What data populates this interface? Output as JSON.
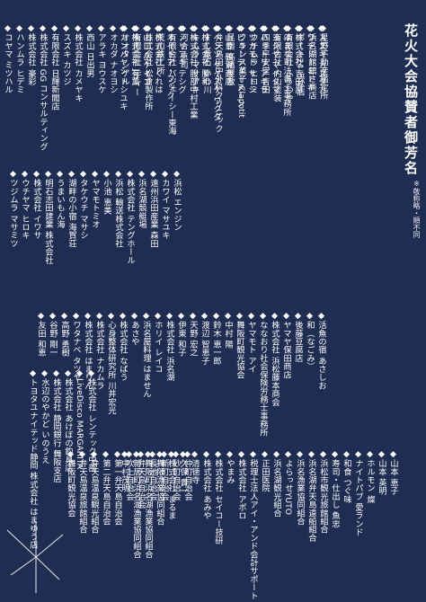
{
  "title": "花火大会協賛者御芳名",
  "note": "※敬称略・順不同",
  "bullet": "◆",
  "blocks": [
    {
      "name": "top-right",
      "entries": [
        "スズキ カズタカ",
        "ワデドーミトキ",
        "株式会社 吉田屋",
        "はまな司法書士事務所",
        "ヨシヤ マイタマ",
        "ハットリ アキラ",
        "ツカモト サトシ",
        "ビューティーヌーン",
        "山豊 鶴賀商店",
        "ベンツ ケイスケ ワクダ",
        "株式会社 勝和",
        "株式会社 服部中村工業",
        "ノリアキ テシグ",
        "オイトア・フック",
        "株式会社 くれは",
        "山口 岳ケイゴ",
        "株式会社 有薫",
        "カンバヤシ トシユキ"
      ]
    },
    {
      "name": "top-middle",
      "entries": [
        "星野不動産鑑定所",
        "浜名湖館舘さ商店",
        "ポート24 浜松店",
        "有限会社 ふうわや",
        "有限会社 内山塗装",
        "四季平安堂 吉田",
        "ウチムラ ヒロミ",
        "フランス菓子 Clapotit",
        "民宿 髙橋屋敷",
        "弁天島田中外科クリニック",
        "すし竜石 いわ川",
        "キムラ マサアキ",
        "河合 恵司",
        "有限会社 バジェーシー東海",
        "荒川鉄工所",
        "株式会社 松倉製作所",
        "有限会社 Jディー",
        "オオタ シゲル",
        "オカダ ナオヨシ",
        "アラキ ヨウスケ",
        "西山 日出男",
        "株式会社 カメヤキ",
        "スズキ カツジ",
        "有限会社 日輝新聞店",
        "株式会社 GG コンサルティング",
        "株式会社 豪彩",
        "ハンムラ ヒデミ",
        "コヤマ ミツハル"
      ]
    },
    {
      "name": "top-left",
      "entries": [
        "浜松 エンジン",
        "カワイ マサユキ",
        "遠州浜田産業 森田",
        "浜名湖競艇場",
        "株式会社 テングホール",
        "浜松 輸送株式会社",
        "小池 恵美",
        "ヤマモトミオ",
        "タケウチ マサシ",
        "湖畔の小宿 海賀荘",
        "うまいもん海",
        "明石志田建業 株式会社",
        "株式会社 イワサ",
        "ウチヤマ ヒロキ",
        "ツジムラ マサミツ"
      ]
    },
    {
      "name": "bottom-right",
      "entries": [
        "活魚の宿 あさしお",
        "和（なごみ）",
        "後藤豆腐店",
        "ヤマヤ保田商店",
        "株式会社 浜松藤本商会",
        "ななおり社会保険労務士事務所",
        "ヤマモト アイ",
        "舞阪町観光協会",
        "中村 陽",
        "鈴木 恵一郎",
        "渡辺 智恵子",
        "天野 宏之",
        "伊東 和子",
        "株式会社 浜名湖",
        "ホリイ レイコ",
        "浜名屋料理 はません",
        "あさや",
        "株式会社 なばう",
        "心身整体研究所 川井宏光",
        "株式会社 ナカムラ",
        "株式会社 はまりん",
        "ワタナベ タツヤ",
        "高野 勇樹",
        "谷野 剛一",
        "友田 和恵"
      ]
    },
    {
      "name": "bottom-middle",
      "entries": [
        "株式会社 レンテック中部",
        "LiveDisco MARGARITA",
        "株式会社 あけぼの釣具店",
        "株式会社 静岡銀行 舞阪支店",
        "水辺のやかど いのうえ",
        "トヨタユナイテッド静岡 株式会社 はまゆう店"
      ]
    },
    {
      "name": "bottom-right-2",
      "entries": [
        "山本 恵子",
        "山本 英明",
        "ホルモン 燦",
        "ナイトパブ 愛ランド",
        "和食 つぐ味",
        "寿司・仕出し 魚忠",
        "浜松市観光旅館組合",
        "浜名湖弁天島遠船組合",
        "浜名漁業協同組合",
        "よらっせYUTO",
        "浜名湖観光組合",
        "正田医院",
        "税理士法人アイ・アンド会計サポート",
        "株式会社 アポロ",
        "やまみ",
        "株式会社 セイコー技研",
        "株式会社 あみや",
        "清徳寺",
        "久保 貴一",
        "株式会社 まるま",
        "舞阪漁業協同組合",
        "舞阪町浜名湖漁業協同組合",
        "新居町浜名湖漁業協同組合",
        "中村茂明"
      ]
    },
    {
      "name": "bottom-left",
      "entries": [
        "仲町自治会",
        "砂町自治会",
        "新町自治会",
        "長池自治会",
        "弁天島自治会",
        "吹上自治会",
        "第一弁天島自治会",
        "第二弁天島自治会",
        "弁天島温泉観光組合",
        "弁天島温泉旅館組合",
        "舞阪町観光協会"
      ]
    }
  ]
}
